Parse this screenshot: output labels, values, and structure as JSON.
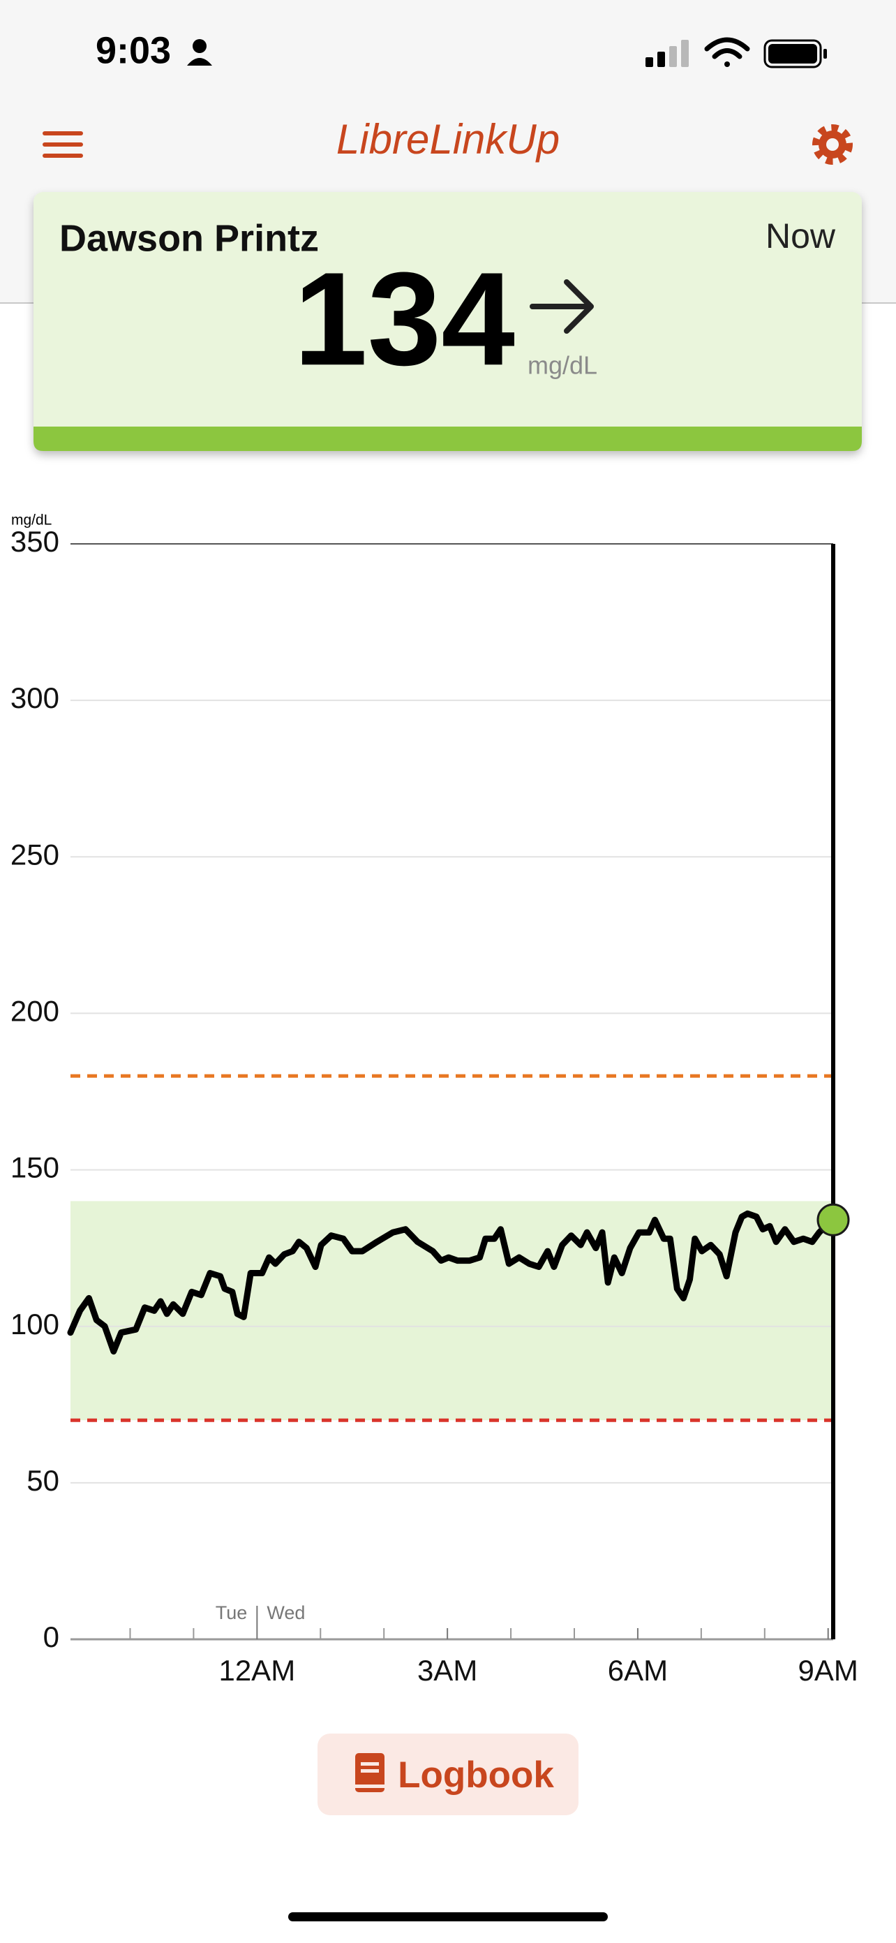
{
  "status_bar": {
    "time": "9:03"
  },
  "header": {
    "title": "LibreLinkUp"
  },
  "card": {
    "name": "Dawson Printz",
    "time": "Now",
    "value": 134,
    "unit": "mg/dL"
  },
  "chart_data": {
    "type": "line",
    "y_unit": "mg/dL",
    "x": [
      -2.94,
      -2.79,
      -2.65,
      -2.53,
      -2.4,
      -2.26,
      -2.14,
      -1.91,
      -1.77,
      -1.62,
      -1.52,
      -1.42,
      -1.32,
      -1.17,
      -1.03,
      -0.88,
      -0.74,
      -0.58,
      -0.51,
      -0.39,
      -0.31,
      -0.21,
      -0.1,
      0.08,
      0.19,
      0.29,
      0.43,
      0.56,
      0.66,
      0.78,
      0.92,
      1.01,
      1.17,
      1.36,
      1.5,
      1.66,
      1.89,
      2.14,
      2.34,
      2.53,
      2.77,
      2.9,
      3.02,
      3.16,
      3.35,
      3.51,
      3.6,
      3.74,
      3.84,
      3.97,
      4.13,
      4.29,
      4.44,
      4.58,
      4.68,
      4.81,
      4.95,
      5.1,
      5.2,
      5.34,
      5.44,
      5.53,
      5.63,
      5.75,
      5.88,
      6.02,
      6.18,
      6.27,
      6.41,
      6.51,
      6.62,
      6.72,
      6.82,
      6.9,
      7.01,
      7.15,
      7.29,
      7.4,
      7.54,
      7.64,
      7.73,
      7.87,
      7.97,
      8.08,
      8.18,
      8.32,
      8.46,
      8.61,
      8.75,
      8.86,
      8.96,
      9.08
    ],
    "series": [
      {
        "color": "#000000",
        "values": [
          98,
          105,
          109,
          102,
          100,
          92,
          98,
          99,
          106,
          105,
          108,
          104,
          107,
          104,
          111,
          110,
          117,
          116,
          112,
          111,
          104,
          103,
          117,
          117,
          122,
          120,
          123,
          124,
          127,
          125,
          119,
          126,
          129,
          128,
          124,
          124,
          127,
          130,
          131,
          127,
          124,
          121,
          122,
          121,
          121,
          122,
          128,
          128,
          131,
          120,
          122,
          120,
          119,
          124,
          119,
          126,
          129,
          126,
          130,
          125,
          130,
          114,
          122,
          117,
          125,
          130,
          130,
          134,
          128,
          128,
          112,
          109,
          115,
          128,
          124,
          126,
          123,
          116,
          130,
          135,
          136,
          135,
          131,
          132,
          127,
          131,
          127,
          128,
          127,
          130,
          132,
          134
        ]
      }
    ],
    "xlim": [
      -2.94,
      9.08
    ],
    "ylim": [
      0,
      350
    ],
    "yticks": [
      0,
      50,
      100,
      150,
      200,
      250,
      300,
      350
    ],
    "xticks": [
      {
        "value": 0,
        "label": "12AM"
      },
      {
        "value": 3,
        "label": "3AM"
      },
      {
        "value": 6,
        "label": "6AM"
      },
      {
        "value": 9,
        "label": "9AM"
      }
    ],
    "x_minor_ticks": [
      -2,
      -1,
      1,
      2,
      4,
      5,
      7,
      8
    ],
    "day_labels": [
      "Tue",
      "Wed"
    ],
    "target_high": 180,
    "target_low": 70,
    "target_band": [
      70,
      140
    ],
    "grid": true,
    "target_high_color": "#e87722",
    "target_low_color": "#d9342b",
    "band_color": "#e6f4d7",
    "marker_color": "#8cc63f"
  },
  "button": {
    "label": "Logbook"
  }
}
